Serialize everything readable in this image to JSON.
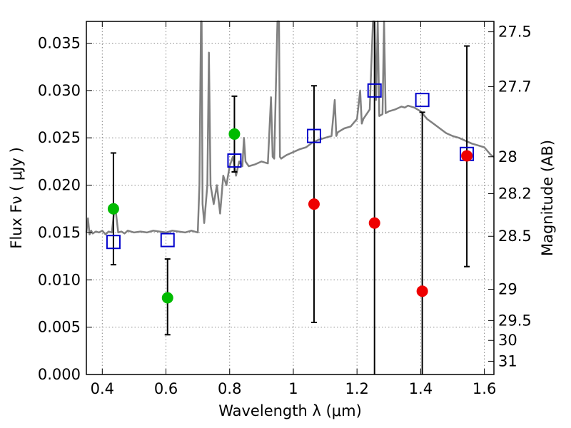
{
  "chart_data": {
    "type": "scatter",
    "title": "",
    "xlabel": "Wavelength  λ (μm)",
    "ylabel": "Flux  F_ν  ( μJy )",
    "ylabel_right": "Magnitude (AB)",
    "xlim": [
      0.35,
      1.63
    ],
    "ylim": [
      0.0,
      0.0373
    ],
    "grid": true,
    "x_ticks": [
      0.4,
      0.6,
      0.8,
      1.0,
      1.2,
      1.4,
      1.6
    ],
    "x_tick_labels": [
      "0.4",
      "0.6",
      "0.8",
      "1",
      "1.2",
      "1.4",
      "1.6"
    ],
    "y_ticks": [
      0.0,
      0.005,
      0.01,
      0.015,
      0.02,
      0.025,
      0.03,
      0.035
    ],
    "y_tick_labels": [
      "0.000",
      "0.005",
      "0.010",
      "0.015",
      "0.020",
      "0.025",
      "0.030",
      "0.035"
    ],
    "right_ticks": [
      {
        "flux": 0.0362,
        "label": "27.5"
      },
      {
        "flux": 0.0304,
        "label": "27.7"
      },
      {
        "flux": 0.023,
        "label": "28"
      },
      {
        "flux": 0.0191,
        "label": "28.2"
      },
      {
        "flux": 0.0146,
        "label": "28.5"
      },
      {
        "flux": 0.009,
        "label": "29"
      },
      {
        "flux": 0.0057,
        "label": "29.5"
      },
      {
        "flux": 0.0036,
        "label": "30"
      },
      {
        "flux": 0.0014,
        "label": "31"
      }
    ],
    "colors": {
      "model": "#808080",
      "model_squares": "#0000cc",
      "green": "#00bb00",
      "red": "#ee0000",
      "errorbar": "#000000",
      "grid": "#888888"
    },
    "series": [
      {
        "kind": "line",
        "x": [
          0.35,
          0.355,
          0.36,
          0.365,
          0.37,
          0.38,
          0.39,
          0.4,
          0.41,
          0.42,
          0.43,
          0.44,
          0.45,
          0.46,
          0.47,
          0.48,
          0.5,
          0.52,
          0.54,
          0.56,
          0.58,
          0.6,
          0.62,
          0.64,
          0.66,
          0.68,
          0.7,
          0.705,
          0.71,
          0.712,
          0.715,
          0.72,
          0.73,
          0.735,
          0.74,
          0.75,
          0.76,
          0.77,
          0.78,
          0.79,
          0.8,
          0.81,
          0.82,
          0.83,
          0.84,
          0.845,
          0.85,
          0.86,
          0.88,
          0.9,
          0.92,
          0.93,
          0.935,
          0.94,
          0.95,
          0.955,
          0.958,
          0.962,
          0.97,
          0.98,
          1.0,
          1.02,
          1.04,
          1.06,
          1.08,
          1.1,
          1.12,
          1.13,
          1.135,
          1.14,
          1.16,
          1.18,
          1.2,
          1.21,
          1.215,
          1.22,
          1.24,
          1.25,
          1.255,
          1.26,
          1.265,
          1.27,
          1.28,
          1.285,
          1.29,
          1.3,
          1.32,
          1.34,
          1.35,
          1.36,
          1.38,
          1.4,
          1.42,
          1.44,
          1.46,
          1.48,
          1.5,
          1.52,
          1.54,
          1.56,
          1.58,
          1.6,
          1.62,
          1.63
        ],
        "y": [
          0.015,
          0.0165,
          0.0148,
          0.0152,
          0.0149,
          0.0151,
          0.015,
          0.0152,
          0.0148,
          0.0151,
          0.015,
          0.018,
          0.015,
          0.0151,
          0.0149,
          0.0152,
          0.015,
          0.0151,
          0.015,
          0.0152,
          0.0151,
          0.015,
          0.0152,
          0.0151,
          0.015,
          0.0152,
          0.015,
          0.02,
          0.0373,
          0.0373,
          0.018,
          0.016,
          0.02,
          0.034,
          0.02,
          0.018,
          0.02,
          0.017,
          0.021,
          0.02,
          0.022,
          0.023,
          0.021,
          0.0225,
          0.022,
          0.025,
          0.0225,
          0.022,
          0.0222,
          0.0225,
          0.0223,
          0.0293,
          0.023,
          0.0228,
          0.0373,
          0.0373,
          0.023,
          0.0228,
          0.023,
          0.0232,
          0.0235,
          0.0238,
          0.024,
          0.0245,
          0.0248,
          0.025,
          0.0252,
          0.029,
          0.0252,
          0.0256,
          0.026,
          0.0262,
          0.027,
          0.03,
          0.0265,
          0.027,
          0.028,
          0.0373,
          0.0373,
          0.029,
          0.0373,
          0.0273,
          0.0275,
          0.0373,
          0.0276,
          0.0278,
          0.028,
          0.0283,
          0.0282,
          0.0284,
          0.0282,
          0.0278,
          0.027,
          0.0265,
          0.026,
          0.0255,
          0.0252,
          0.025,
          0.0247,
          0.0244,
          0.0242,
          0.024,
          0.0232,
          0.023
        ]
      },
      {
        "kind": "squares",
        "x": [
          0.435,
          0.605,
          0.815,
          1.065,
          1.255,
          1.405,
          1.545
        ],
        "y": [
          0.014,
          0.0142,
          0.0226,
          0.0252,
          0.03,
          0.029,
          0.0233
        ]
      },
      {
        "kind": "points_green",
        "x": [
          0.435,
          0.605,
          0.815
        ],
        "y": [
          0.0175,
          0.0081,
          0.0254
        ],
        "yerr_low": [
          0.0116,
          0.0042,
          0.0214
        ],
        "yerr_high": [
          0.0234,
          0.0122,
          0.0294
        ]
      },
      {
        "kind": "points_red",
        "x": [
          1.065,
          1.255,
          1.405,
          1.545
        ],
        "y": [
          0.018,
          0.016,
          0.0088,
          0.0231
        ],
        "yerr_low": [
          0.0055,
          0.0,
          0.0,
          0.0114
        ],
        "yerr_high": [
          0.0305,
          0.0373,
          0.0277,
          0.0347
        ]
      }
    ]
  }
}
